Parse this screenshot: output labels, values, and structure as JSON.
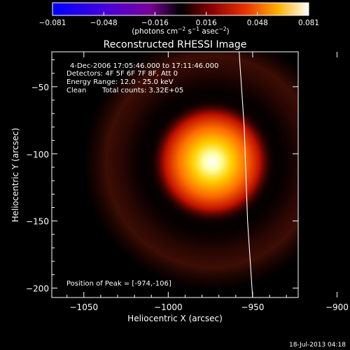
{
  "colorbar": {
    "ticks": [
      "-0.081",
      "-0.048",
      "-0.016",
      "0.016",
      "0.048",
      "0.081"
    ],
    "unit_prefix": "(photons cm",
    "unit_exp1": "−2",
    "unit_mid": " s",
    "unit_exp2": "−1",
    "unit_mid2": " asec",
    "unit_exp3": "−2",
    "unit_suffix": ")"
  },
  "info": {
    "time_range": "4-Dec-2006 17:05:46.000 to 17:11:46.000",
    "detectors": "Detectors: 4F 5F 6F 7F 8F, Att 0",
    "energy_range": "Energy Range: 12.0 - 25.0 keV",
    "method": "Clean",
    "total_counts": "Total counts: 3.32E+05",
    "peak": "Position of Peak = [-974,-106]"
  },
  "footer": {
    "timestamp": "18-Jul-2013 04:18"
  },
  "chart_data": {
    "type": "heatmap",
    "title": "Reconstructed RHESSI Image",
    "xlabel": "Heliocentric X (arcsec)",
    "ylabel": "Heliocentric Y (arcsec)",
    "xlim": [
      -1069,
      -923
    ],
    "ylim": [
      -207,
      -24
    ],
    "xticks": [
      -1050,
      -1000,
      -950,
      -900
    ],
    "yticks": [
      -50,
      -100,
      -150,
      -200
    ],
    "colormap_range": [
      -0.081,
      0.081
    ],
    "peak": {
      "x": -974,
      "y": -106
    },
    "ring_radius_arcsec": 58,
    "limb_curve": [
      {
        "x": -958,
        "y": -24
      },
      {
        "x": -955,
        "y": -80
      },
      {
        "x": -953,
        "y": -150
      },
      {
        "x": -950,
        "y": -207
      }
    ]
  }
}
